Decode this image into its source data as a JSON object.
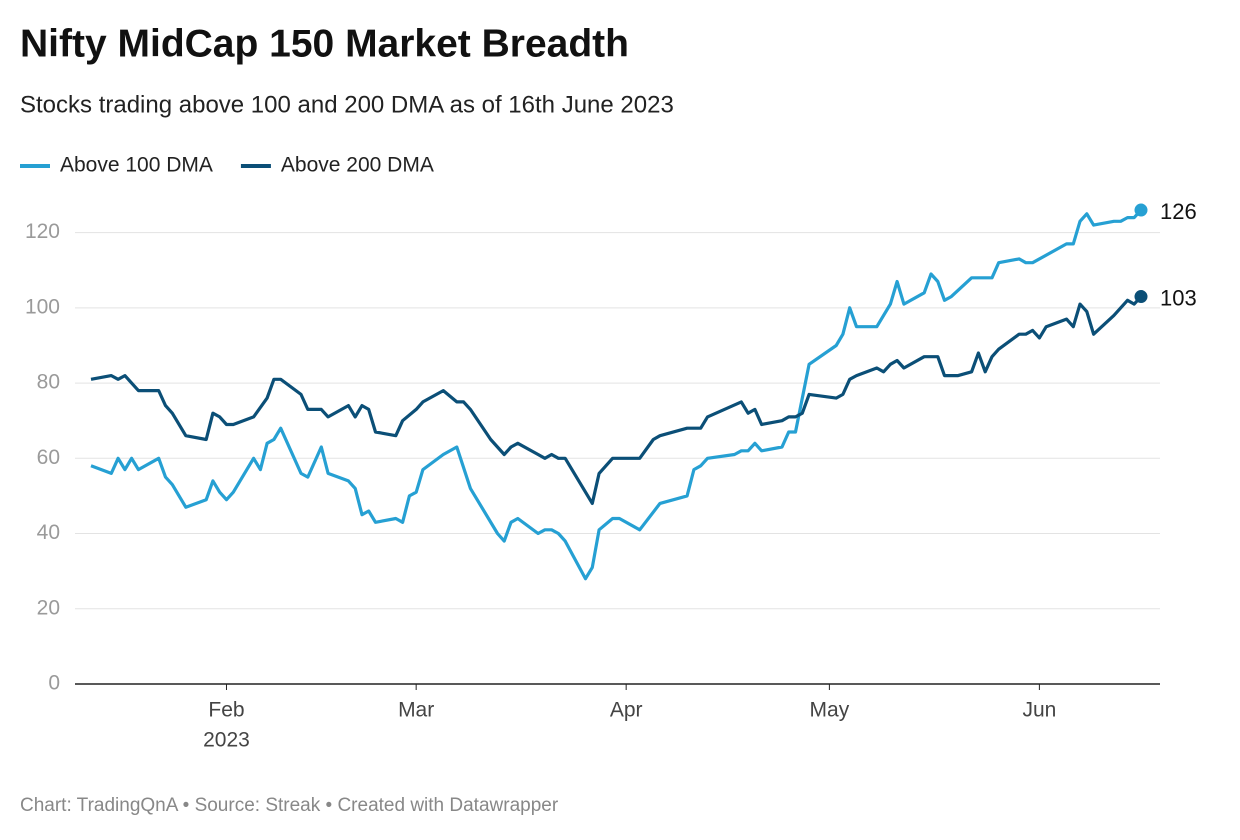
{
  "chart_data": {
    "type": "line",
    "title": "Nifty MidCap 150 Market Breadth",
    "subtitle": "Stocks trading above 100 and 200 DMA as of 16th June 2023",
    "footer": "Chart: TradingQnA • Source: Streak • Created with Datawrapper",
    "ylim": [
      0,
      130
    ],
    "yticks": [
      0,
      20,
      40,
      60,
      80,
      100,
      120
    ],
    "grid": true,
    "xlim": [
      "2023-01-12",
      "2023-06-16"
    ],
    "xticks": [
      {
        "value": "2023-02-01",
        "label": "Feb",
        "year": "2023"
      },
      {
        "value": "2023-03-01",
        "label": "Mar"
      },
      {
        "value": "2023-04-01",
        "label": "Apr"
      },
      {
        "value": "2023-05-01",
        "label": "May"
      },
      {
        "value": "2023-06-01",
        "label": "Jun"
      }
    ],
    "legend": "top-left",
    "series": [
      {
        "name": "Above 100 DMA",
        "color": "#26a0d3",
        "x": [
          "2023-01-12",
          "2023-01-15",
          "2023-01-16",
          "2023-01-17",
          "2023-01-18",
          "2023-01-19",
          "2023-01-22",
          "2023-01-23",
          "2023-01-24",
          "2023-01-26",
          "2023-01-29",
          "2023-01-30",
          "2023-01-31",
          "2023-02-01",
          "2023-02-02",
          "2023-02-05",
          "2023-02-06",
          "2023-02-07",
          "2023-02-08",
          "2023-02-09",
          "2023-02-12",
          "2023-02-13",
          "2023-02-15",
          "2023-02-16",
          "2023-02-19",
          "2023-02-20",
          "2023-02-21",
          "2023-02-22",
          "2023-02-23",
          "2023-02-26",
          "2023-02-27",
          "2023-02-28",
          "2023-03-01",
          "2023-03-02",
          "2023-03-05",
          "2023-03-07",
          "2023-03-09",
          "2023-03-13",
          "2023-03-14",
          "2023-03-15",
          "2023-03-16",
          "2023-03-19",
          "2023-03-20",
          "2023-03-21",
          "2023-03-22",
          "2023-03-23",
          "2023-03-26",
          "2023-03-27",
          "2023-03-28",
          "2023-03-30",
          "2023-03-31",
          "2023-04-03",
          "2023-04-06",
          "2023-04-10",
          "2023-04-11",
          "2023-04-12",
          "2023-04-13",
          "2023-04-17",
          "2023-04-18",
          "2023-04-19",
          "2023-04-20",
          "2023-04-21",
          "2023-04-24",
          "2023-04-25",
          "2023-04-26",
          "2023-04-28",
          "2023-05-02",
          "2023-05-03",
          "2023-05-04",
          "2023-05-05",
          "2023-05-08",
          "2023-05-10",
          "2023-05-11",
          "2023-05-12",
          "2023-05-15",
          "2023-05-16",
          "2023-05-17",
          "2023-05-18",
          "2023-05-19",
          "2023-05-22",
          "2023-05-25",
          "2023-05-26",
          "2023-05-29",
          "2023-05-30",
          "2023-05-31",
          "2023-06-05",
          "2023-06-06",
          "2023-06-07",
          "2023-06-08",
          "2023-06-09",
          "2023-06-12",
          "2023-06-13",
          "2023-06-14",
          "2023-06-15",
          "2023-06-16"
        ],
        "values": [
          58,
          56,
          60,
          57,
          60,
          57,
          60,
          55,
          53,
          47,
          49,
          54,
          51,
          49,
          51,
          60,
          57,
          64,
          65,
          68,
          56,
          55,
          63,
          56,
          54,
          52,
          45,
          46,
          43,
          44,
          43,
          50,
          51,
          57,
          61,
          63,
          52,
          40,
          38,
          43,
          44,
          40,
          41,
          41,
          40,
          38,
          28,
          31,
          41,
          44,
          44,
          41,
          48,
          50,
          57,
          58,
          60,
          61,
          62,
          62,
          64,
          62,
          63,
          67,
          67,
          85,
          90,
          93,
          100,
          95,
          95,
          101,
          107,
          101,
          104,
          109,
          107,
          102,
          103,
          108,
          108,
          112,
          113,
          112,
          112,
          117,
          117,
          123,
          125,
          122,
          123,
          123,
          124,
          124,
          126
        ]
      },
      {
        "name": "Above 200 DMA",
        "color": "#0b4f77",
        "x": [
          "2023-01-12",
          "2023-01-15",
          "2023-01-16",
          "2023-01-17",
          "2023-01-19",
          "2023-01-22",
          "2023-01-23",
          "2023-01-24",
          "2023-01-26",
          "2023-01-29",
          "2023-01-30",
          "2023-01-31",
          "2023-02-01",
          "2023-02-02",
          "2023-02-05",
          "2023-02-07",
          "2023-02-08",
          "2023-02-09",
          "2023-02-12",
          "2023-02-13",
          "2023-02-15",
          "2023-02-16",
          "2023-02-19",
          "2023-02-20",
          "2023-02-21",
          "2023-02-22",
          "2023-02-23",
          "2023-02-26",
          "2023-02-27",
          "2023-03-01",
          "2023-03-02",
          "2023-03-05",
          "2023-03-07",
          "2023-03-08",
          "2023-03-09",
          "2023-03-12",
          "2023-03-14",
          "2023-03-15",
          "2023-03-16",
          "2023-03-19",
          "2023-03-20",
          "2023-03-21",
          "2023-03-22",
          "2023-03-23",
          "2023-03-27",
          "2023-03-28",
          "2023-03-30",
          "2023-04-03",
          "2023-04-05",
          "2023-04-06",
          "2023-04-10",
          "2023-04-12",
          "2023-04-13",
          "2023-04-18",
          "2023-04-19",
          "2023-04-20",
          "2023-04-21",
          "2023-04-24",
          "2023-04-25",
          "2023-04-26",
          "2023-04-27",
          "2023-04-28",
          "2023-05-02",
          "2023-05-03",
          "2023-05-04",
          "2023-05-05",
          "2023-05-08",
          "2023-05-09",
          "2023-05-10",
          "2023-05-11",
          "2023-05-12",
          "2023-05-15",
          "2023-05-17",
          "2023-05-18",
          "2023-05-20",
          "2023-05-22",
          "2023-05-23",
          "2023-05-24",
          "2023-05-25",
          "2023-05-26",
          "2023-05-29",
          "2023-05-30",
          "2023-05-31",
          "2023-06-01",
          "2023-06-02",
          "2023-06-05",
          "2023-06-06",
          "2023-06-07",
          "2023-06-08",
          "2023-06-09",
          "2023-06-12",
          "2023-06-14",
          "2023-06-15",
          "2023-06-16"
        ],
        "values": [
          81,
          82,
          81,
          82,
          78,
          78,
          74,
          72,
          66,
          65,
          72,
          71,
          69,
          69,
          71,
          76,
          81,
          81,
          77,
          73,
          73,
          71,
          74,
          71,
          74,
          73,
          67,
          66,
          70,
          73,
          75,
          78,
          75,
          75,
          73,
          65,
          61,
          63,
          64,
          61,
          60,
          61,
          60,
          60,
          48,
          56,
          60,
          60,
          65,
          66,
          68,
          68,
          71,
          75,
          72,
          73,
          69,
          70,
          71,
          71,
          72,
          77,
          76,
          77,
          81,
          82,
          84,
          83,
          85,
          86,
          84,
          87,
          87,
          82,
          82,
          83,
          88,
          83,
          87,
          89,
          93,
          93,
          94,
          92,
          95,
          97,
          95,
          101,
          99,
          93,
          98,
          102,
          101,
          103
        ]
      }
    ]
  }
}
